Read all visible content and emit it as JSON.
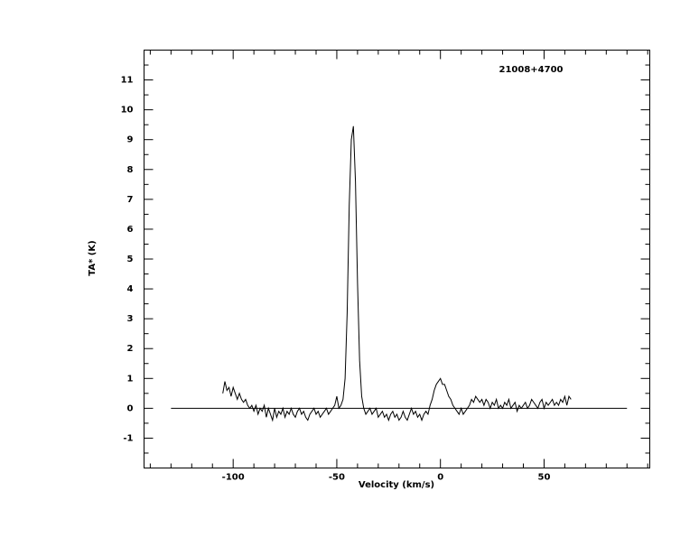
{
  "chart_data": {
    "type": "line",
    "annotation": "21008+4700",
    "xlabel": "Velocity (km/s)",
    "ylabel": "TA* (K)",
    "xlim": [
      -143,
      101
    ],
    "ylim": [
      -2,
      12
    ],
    "xticks": [
      -100,
      -50,
      0,
      50
    ],
    "yticks": [
      -1,
      0,
      1,
      2,
      3,
      4,
      5,
      6,
      7,
      8,
      9,
      10,
      11
    ],
    "xminorticks": [
      -140,
      -130,
      -120,
      -110,
      -90,
      -80,
      -70,
      -60,
      -40,
      -30,
      -20,
      -10,
      10,
      20,
      30,
      40,
      60,
      70,
      80,
      90,
      100
    ],
    "yminorticks": [
      -2,
      -1.5,
      -0.5,
      0.5,
      1.5,
      2.5,
      3.5,
      4.5,
      5.5,
      6.5,
      7.5,
      8.5,
      9.5,
      10.5,
      11.5,
      12
    ],
    "series": [
      {
        "color": "#000000",
        "x": [
          -105,
          -104,
          -103,
          -102,
          -101,
          -100,
          -99,
          -98,
          -97,
          -96,
          -95,
          -94,
          -93,
          -92,
          -91,
          -90,
          -89,
          -88,
          -87,
          -86,
          -85,
          -84,
          -83,
          -82,
          -81,
          -80,
          -79,
          -78,
          -77,
          -76,
          -75,
          -74,
          -73,
          -72,
          -71,
          -70,
          -69,
          -68,
          -67,
          -66,
          -65,
          -64,
          -63,
          -62,
          -61,
          -60,
          -59,
          -58,
          -57,
          -56,
          -55,
          -54,
          -53,
          -52,
          -51,
          -50,
          -49,
          -48,
          -47,
          -46,
          -45,
          -44,
          -43,
          -42,
          -41,
          -40,
          -39,
          -38,
          -37,
          -36,
          -35,
          -34,
          -33,
          -32,
          -31,
          -30,
          -29,
          -28,
          -27,
          -26,
          -25,
          -24,
          -23,
          -22,
          -21,
          -20,
          -19,
          -18,
          -17,
          -16,
          -15,
          -14,
          -13,
          -12,
          -11,
          -10,
          -9,
          -8,
          -7,
          -6,
          -5,
          -4,
          -3,
          -2,
          -1,
          0,
          1,
          2,
          3,
          4,
          5,
          6,
          7,
          8,
          9,
          10,
          11,
          12,
          13,
          14,
          15,
          16,
          17,
          18,
          19,
          20,
          21,
          22,
          23,
          24,
          25,
          26,
          27,
          28,
          29,
          30,
          31,
          32,
          33,
          34,
          35,
          36,
          37,
          38,
          39,
          40,
          41,
          42,
          43,
          44,
          45,
          46,
          47,
          48,
          49,
          50,
          51,
          52,
          53,
          54,
          55,
          56,
          57,
          58,
          59,
          60,
          61,
          62,
          63
        ],
        "values": [
          0.5,
          0.9,
          0.6,
          0.7,
          0.4,
          0.7,
          0.5,
          0.3,
          0.5,
          0.3,
          0.2,
          0.3,
          0.1,
          0.0,
          0.1,
          -0.1,
          0.1,
          -0.2,
          0.0,
          -0.1,
          0.1,
          -0.3,
          0.0,
          -0.2,
          -0.4,
          0.0,
          -0.3,
          -0.1,
          -0.2,
          0.0,
          -0.3,
          -0.1,
          -0.2,
          0.0,
          -0.2,
          -0.3,
          -0.1,
          0.0,
          -0.2,
          -0.1,
          -0.3,
          -0.4,
          -0.2,
          -0.1,
          0.0,
          -0.2,
          -0.1,
          -0.3,
          -0.2,
          -0.1,
          0.0,
          -0.2,
          -0.1,
          0.0,
          0.1,
          0.4,
          0.0,
          0.1,
          0.3,
          1.0,
          3.2,
          6.8,
          9.0,
          9.45,
          7.6,
          4.2,
          1.6,
          0.4,
          0.0,
          -0.2,
          -0.1,
          0.0,
          -0.2,
          -0.1,
          0.0,
          -0.3,
          -0.2,
          -0.1,
          -0.3,
          -0.2,
          -0.4,
          -0.2,
          -0.1,
          -0.3,
          -0.2,
          -0.4,
          -0.3,
          -0.1,
          -0.3,
          -0.4,
          -0.2,
          0.0,
          -0.2,
          -0.1,
          -0.3,
          -0.2,
          -0.4,
          -0.2,
          -0.1,
          -0.2,
          0.1,
          0.3,
          0.6,
          0.8,
          0.9,
          1.0,
          0.8,
          0.8,
          0.6,
          0.4,
          0.3,
          0.1,
          0.0,
          -0.1,
          -0.2,
          0.0,
          -0.2,
          -0.1,
          0.0,
          0.1,
          0.3,
          0.2,
          0.4,
          0.3,
          0.2,
          0.3,
          0.1,
          0.3,
          0.2,
          0.0,
          0.2,
          0.1,
          0.3,
          0.0,
          0.1,
          0.0,
          0.2,
          0.1,
          0.3,
          0.0,
          0.1,
          0.2,
          -0.1,
          0.1,
          0.0,
          0.1,
          0.2,
          0.0,
          0.1,
          0.3,
          0.2,
          0.1,
          0.0,
          0.2,
          0.3,
          0.0,
          0.2,
          0.1,
          0.2,
          0.3,
          0.1,
          0.2,
          0.1,
          0.3,
          0.2,
          0.4,
          0.1,
          0.4,
          0.3
        ]
      },
      {
        "color": "#000000",
        "x": [
          -130,
          90
        ],
        "values": [
          0,
          0
        ]
      }
    ]
  }
}
